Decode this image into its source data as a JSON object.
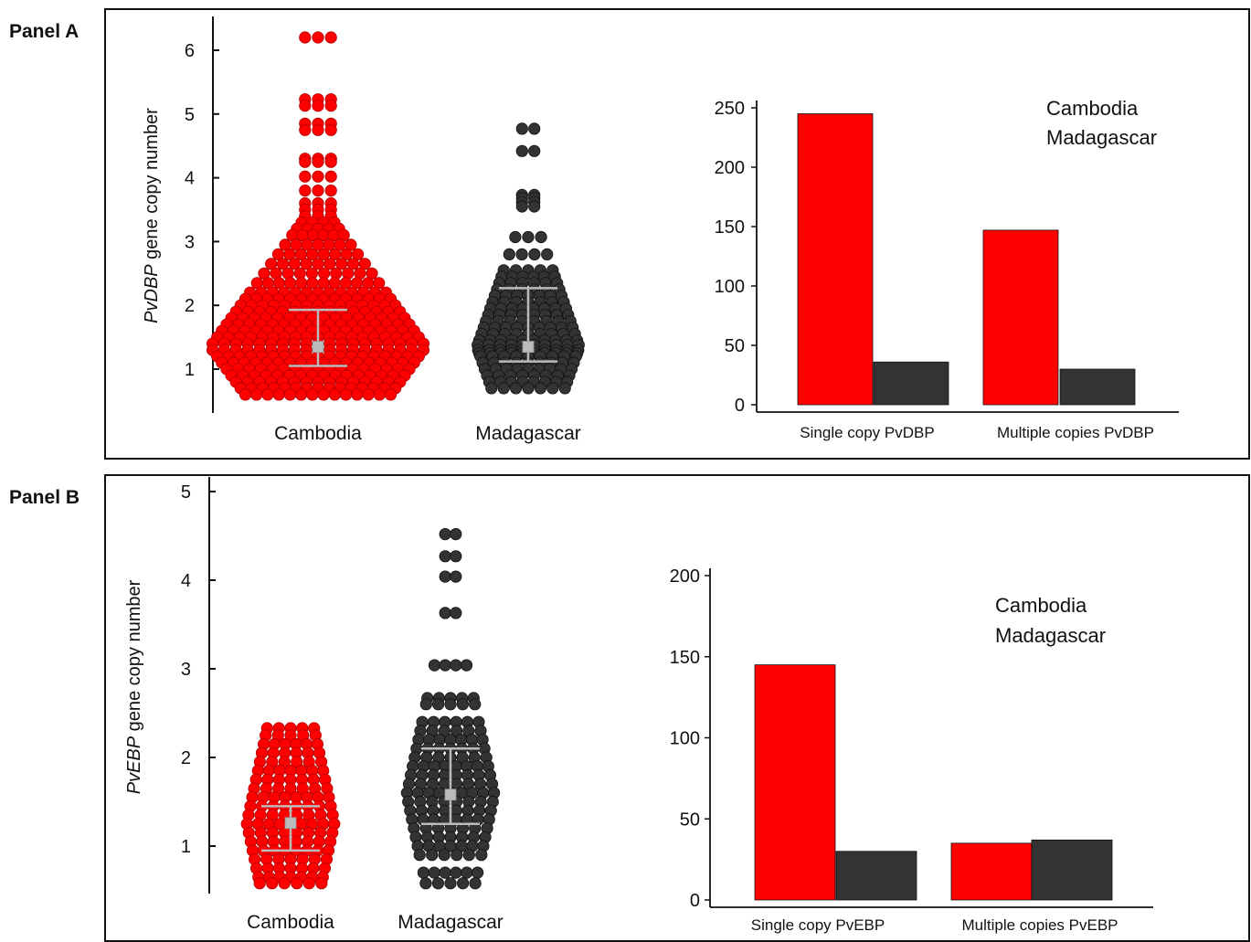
{
  "panels": [
    {
      "label": "Panel A",
      "scatter": {
        "ylabel_italic": "PvDBP",
        "ylabel_rest": " gene copy number",
        "yticks": [
          "1",
          "2",
          "3",
          "4",
          "5",
          "6"
        ],
        "categories": [
          "Cambodia",
          "Madagascar"
        ]
      },
      "bar": {
        "yticks": [
          "0",
          "50",
          "100",
          "150",
          "200",
          "250"
        ],
        "categories": [
          "Single copy PvDBP",
          "Multiple copies PvDBP"
        ],
        "legend": [
          "Cambodia",
          "Madagascar"
        ]
      }
    },
    {
      "label": "Panel B",
      "scatter": {
        "ylabel_italic": "PvEBP",
        "ylabel_rest": " gene copy number",
        "yticks": [
          "1",
          "2",
          "3",
          "4",
          "5"
        ],
        "categories": [
          "Cambodia",
          "Madagascar"
        ]
      },
      "bar": {
        "yticks": [
          "0",
          "50",
          "100",
          "150",
          "200"
        ],
        "categories": [
          "Single copy PvEBP",
          "Multiple copies PvEBP"
        ],
        "legend": [
          "Cambodia",
          "Madagascar"
        ]
      }
    }
  ],
  "colors": {
    "cambodia": "#ff0000",
    "madagascar": "#333333",
    "errorbar": "#bbbbbb"
  },
  "chart_data": [
    {
      "type": "scatter",
      "ylabel": "PvDBP gene copy number",
      "categories": [
        "Cambodia",
        "Madagascar"
      ],
      "ylim": [
        0.3,
        6.5
      ],
      "series": [
        {
          "name": "Cambodia",
          "summary": {
            "center": 1.35,
            "lower": 1.05,
            "upper": 1.93
          },
          "values": [
            6.2,
            5.23,
            5.13,
            4.85,
            4.75,
            4.3,
            4.25,
            4.02,
            3.8,
            3.6,
            3.5,
            3.4,
            3.3,
            3.2,
            3.1,
            2.95,
            2.8,
            2.65,
            2.5,
            2.35,
            2.2,
            2.1,
            2.0,
            1.9,
            1.8,
            1.7,
            1.6,
            1.5,
            1.4,
            1.3,
            1.2,
            1.1,
            1.0,
            0.9,
            0.8,
            0.7,
            0.6
          ]
        },
        {
          "name": "Madagascar",
          "summary": {
            "center": 1.35,
            "lower": 1.12,
            "upper": 2.27
          },
          "values": [
            4.77,
            4.42,
            3.73,
            3.68,
            3.62,
            3.55,
            3.07,
            2.8,
            2.55,
            2.45,
            2.35,
            2.25,
            2.15,
            2.05,
            1.95,
            1.85,
            1.75,
            1.65,
            1.55,
            1.45,
            1.38,
            1.3,
            1.25,
            1.2,
            1.1,
            1.0,
            0.9,
            0.8,
            0.7
          ]
        }
      ]
    },
    {
      "type": "bar",
      "categories": [
        "Single copy PvDBP",
        "Multiple copies PvDBP"
      ],
      "ylim": [
        0,
        250
      ],
      "series": [
        {
          "name": "Cambodia",
          "values": [
            245,
            147
          ]
        },
        {
          "name": "Madagascar",
          "values": [
            36,
            30
          ]
        }
      ]
    },
    {
      "type": "scatter",
      "ylabel": "PvEBP gene copy number",
      "categories": [
        "Cambodia",
        "Madagascar"
      ],
      "ylim": [
        0.5,
        5
      ],
      "series": [
        {
          "name": "Cambodia",
          "summary": {
            "center": 1.26,
            "lower": 0.95,
            "upper": 1.45
          },
          "values": [
            2.33,
            2.25,
            2.15,
            2.05,
            1.95,
            1.85,
            1.75,
            1.65,
            1.55,
            1.45,
            1.35,
            1.25,
            1.15,
            1.05,
            0.95,
            0.85,
            0.75,
            0.65,
            0.58
          ]
        },
        {
          "name": "Madagascar",
          "summary": {
            "center": 1.58,
            "lower": 1.25,
            "upper": 2.1
          },
          "values": [
            4.52,
            4.27,
            4.04,
            3.63,
            3.04,
            2.67,
            2.6,
            2.4,
            2.3,
            2.2,
            2.1,
            2.0,
            1.9,
            1.8,
            1.7,
            1.6,
            1.5,
            1.4,
            1.3,
            1.2,
            1.1,
            1.0,
            0.9,
            0.7,
            0.58
          ]
        }
      ]
    },
    {
      "type": "bar",
      "categories": [
        "Single copy PvEBP",
        "Multiple copies PvEBP"
      ],
      "ylim": [
        0,
        200
      ],
      "series": [
        {
          "name": "Cambodia",
          "values": [
            145,
            35
          ]
        },
        {
          "name": "Madagascar",
          "values": [
            30,
            37
          ]
        }
      ]
    }
  ]
}
